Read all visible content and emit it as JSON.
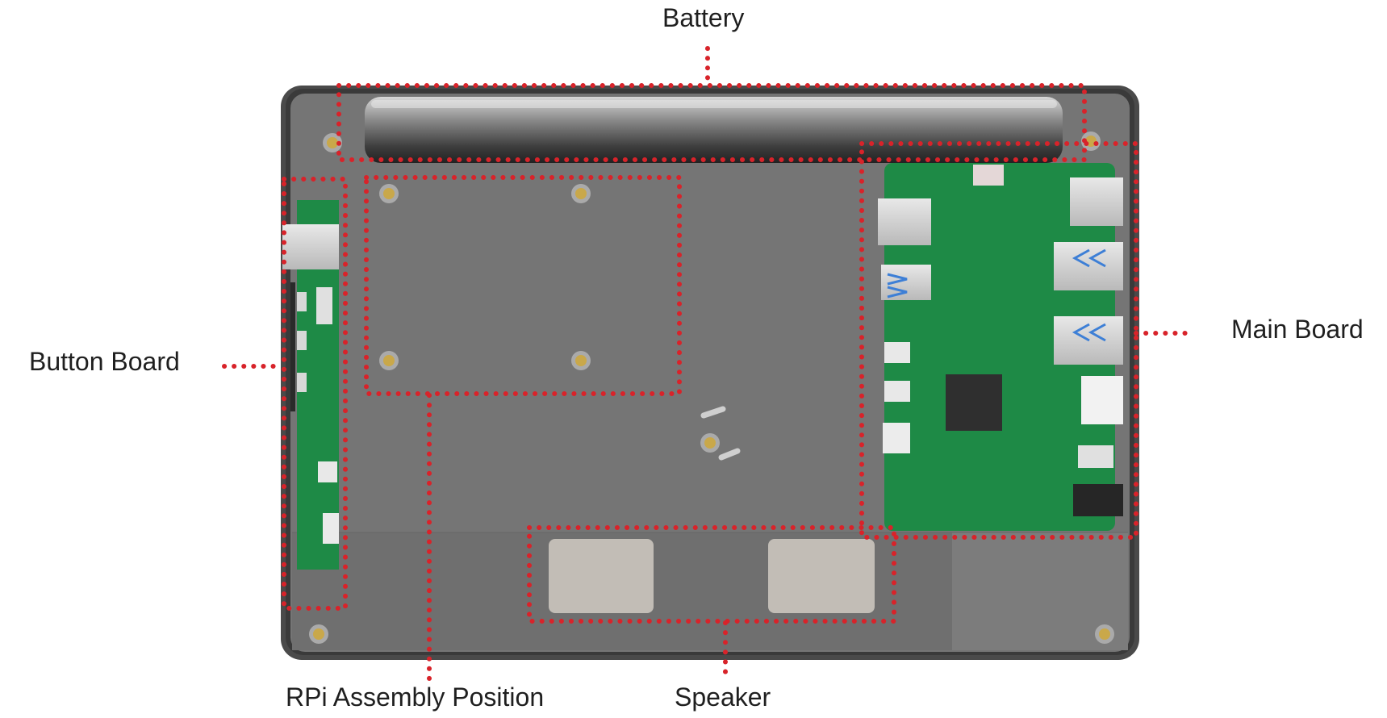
{
  "labels": {
    "battery": "Battery",
    "main_board": "Main Board",
    "button_board": "Button Board",
    "rpi_assembly": "RPi Assembly Position",
    "speaker": "Speaker"
  },
  "colors": {
    "callout": "#d8232a",
    "enclosure": "#6e6e6e",
    "frame": "#3a3a3a",
    "pcb": "#1e8a46",
    "speaker_pad": "#c2bdb6"
  }
}
